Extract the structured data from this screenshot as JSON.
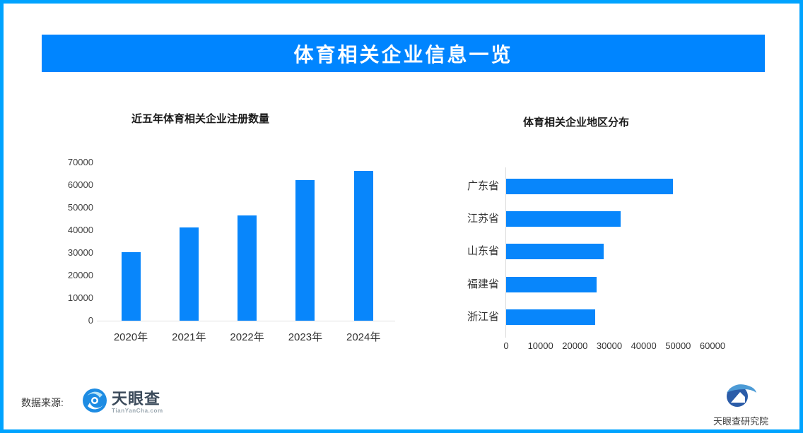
{
  "banner": {
    "title": "体育相关企业信息一览",
    "bg_color": "#0085FF",
    "text_color": "#FFFFFF"
  },
  "colors": {
    "frame_border": "#00A3FF",
    "bar_fill": "#0886FB",
    "axis_line": "#DCDCDC"
  },
  "chart_data": [
    {
      "type": "bar",
      "title": "近五年体育相关企业注册数量",
      "categories": [
        "2020年",
        "2021年",
        "2022年",
        "2023年",
        "2024年"
      ],
      "values": [
        30200,
        41300,
        46600,
        62300,
        66400
      ],
      "xlabel": "",
      "ylabel": "",
      "ylim": [
        0,
        70000
      ],
      "yticks": [
        0,
        10000,
        20000,
        30000,
        40000,
        50000,
        60000,
        70000
      ],
      "grid": false,
      "legend": "none",
      "bar_color": "#0886FB"
    },
    {
      "type": "bar",
      "orientation": "horizontal",
      "title": "体育相关企业地区分布",
      "categories": [
        "广东省",
        "江苏省",
        "山东省",
        "福建省",
        "浙江省"
      ],
      "values": [
        48400,
        33300,
        28400,
        26400,
        25900
      ],
      "xlabel": "",
      "ylabel": "",
      "xlim": [
        0,
        65000
      ],
      "xticks": [
        0,
        10000,
        20000,
        30000,
        40000,
        50000,
        60000
      ],
      "grid": false,
      "legend": "none",
      "bar_color": "#0886FB"
    }
  ],
  "footer": {
    "source_label": "数据来源:",
    "source_logo_text": "天眼查",
    "source_logo_subtext": "TianYanCha.com",
    "institute_logo_text": "天眼查研究院"
  }
}
